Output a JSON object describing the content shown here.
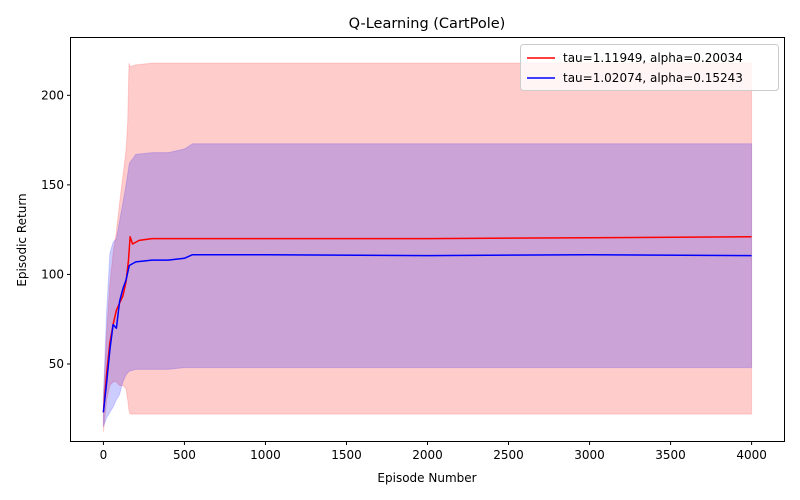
{
  "chart_data": {
    "type": "line",
    "title": "Q-Learning (CartPole)",
    "xlabel": "Episode Number",
    "ylabel": "Episodic Return",
    "xlim": [
      -200,
      4200
    ],
    "ylim": [
      7,
      232
    ],
    "xticks": [
      0,
      500,
      1000,
      1500,
      2000,
      2500,
      3000,
      3500,
      4000
    ],
    "yticks": [
      50,
      100,
      150,
      200
    ],
    "grid": false,
    "legend_position": "top-right",
    "series": [
      {
        "name": "tau=1.11949, alpha=0.20034",
        "color": "#ff0000",
        "band_color": "#ff0000",
        "band_opacity": 0.2,
        "mean": {
          "x": [
            0,
            20,
            40,
            60,
            80,
            100,
            120,
            140,
            155,
            165,
            180,
            220,
            300,
            500,
            1000,
            2000,
            3000,
            4000
          ],
          "y": [
            23,
            45,
            62,
            72,
            80,
            84,
            88,
            96,
            108,
            121,
            117,
            119,
            120,
            120,
            120,
            120,
            120.5,
            121
          ]
        },
        "band": {
          "x": [
            0,
            20,
            40,
            60,
            80,
            100,
            120,
            140,
            150,
            158,
            165,
            200,
            300,
            500,
            1000,
            2000,
            3000,
            4000
          ],
          "lower": [
            12,
            30,
            38,
            40,
            40,
            38,
            38,
            36,
            30,
            24,
            22,
            22,
            22,
            22,
            22,
            22,
            22,
            22
          ],
          "upper": [
            30,
            68,
            95,
            112,
            124,
            140,
            155,
            170,
            185,
            218,
            216,
            217,
            218,
            218,
            218,
            218,
            218,
            218
          ]
        }
      },
      {
        "name": "tau=1.02074, alpha=0.15243",
        "color": "#0000ff",
        "band_color": "#0000ff",
        "band_opacity": 0.2,
        "mean": {
          "x": [
            0,
            20,
            40,
            60,
            80,
            100,
            120,
            140,
            160,
            200,
            300,
            400,
            500,
            550,
            1000,
            2000,
            3000,
            4000
          ],
          "y": [
            23,
            40,
            58,
            72,
            70,
            85,
            92,
            97,
            105,
            107,
            108,
            108,
            109,
            111,
            111,
            110.5,
            111,
            110.5
          ]
        },
        "band": {
          "x": [
            0,
            20,
            40,
            60,
            80,
            100,
            120,
            140,
            160,
            200,
            300,
            400,
            500,
            550,
            1000,
            2000,
            3000,
            4000
          ],
          "lower": [
            15,
            20,
            23,
            26,
            30,
            33,
            40,
            44,
            46,
            47,
            47,
            47,
            48,
            48,
            48,
            48,
            48,
            48
          ],
          "upper": [
            32,
            80,
            112,
            118,
            120,
            130,
            140,
            150,
            162,
            167,
            168,
            168,
            170,
            173,
            173,
            173,
            173,
            173
          ]
        }
      }
    ]
  }
}
